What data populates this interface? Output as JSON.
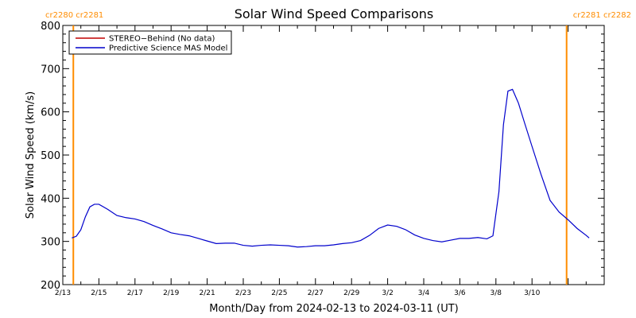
{
  "chart_data": {
    "type": "line",
    "title": "Solar Wind Speed Comparisons",
    "xlabel": "Month/Day from 2024-02-13 to 2024-03-11 (UT)",
    "ylabel": "Solar Wind Speed (km/s)",
    "x_start": "2024-02-13",
    "x_end": "2024-03-11",
    "ylim": [
      200,
      800
    ],
    "yticks": [
      200,
      300,
      400,
      500,
      600,
      700,
      800
    ],
    "xticks": [
      "2/13",
      "2/15",
      "2/17",
      "2/19",
      "2/21",
      "2/23",
      "2/25",
      "2/27",
      "2/29",
      "3/2",
      "3/4",
      "3/6",
      "3/8",
      "3/10"
    ],
    "legend_position": "top-left",
    "carrington_markers": [
      {
        "date": "2024-02-13T14:00",
        "labels": [
          "cr2280",
          "cr2281"
        ],
        "color": "#ff8c00"
      },
      {
        "date": "2024-03-11T22:00",
        "labels": [
          "cr2281",
          "cr2282"
        ],
        "color": "#ff8c00"
      }
    ],
    "series": [
      {
        "name": "STEREO−Behind (No data)",
        "color": "#c00000",
        "points": []
      },
      {
        "name": "Predictive Science MAS Model",
        "color": "#0000cc",
        "points": [
          [
            "2024-02-13T12:00",
            308
          ],
          [
            "2024-02-13T18:00",
            312
          ],
          [
            "2024-02-14T00:00",
            327
          ],
          [
            "2024-02-14T06:00",
            357
          ],
          [
            "2024-02-14T12:00",
            380
          ],
          [
            "2024-02-14T18:00",
            386
          ],
          [
            "2024-02-15T00:00",
            386
          ],
          [
            "2024-02-15T12:00",
            374
          ],
          [
            "2024-02-16T00:00",
            360
          ],
          [
            "2024-02-16T12:00",
            355
          ],
          [
            "2024-02-17T00:00",
            352
          ],
          [
            "2024-02-17T12:00",
            346
          ],
          [
            "2024-02-18T00:00",
            337
          ],
          [
            "2024-02-18T12:00",
            329
          ],
          [
            "2024-02-19T00:00",
            320
          ],
          [
            "2024-02-19T12:00",
            316
          ],
          [
            "2024-02-20T00:00",
            313
          ],
          [
            "2024-02-20T12:00",
            307
          ],
          [
            "2024-02-21T00:00",
            301
          ],
          [
            "2024-02-21T12:00",
            295
          ],
          [
            "2024-02-22T00:00",
            296
          ],
          [
            "2024-02-22T12:00",
            296
          ],
          [
            "2024-02-23T00:00",
            291
          ],
          [
            "2024-02-23T12:00",
            289
          ],
          [
            "2024-02-24T00:00",
            291
          ],
          [
            "2024-02-24T12:00",
            292
          ],
          [
            "2024-02-25T00:00",
            291
          ],
          [
            "2024-02-25T12:00",
            290
          ],
          [
            "2024-02-26T00:00",
            287
          ],
          [
            "2024-02-26T12:00",
            288
          ],
          [
            "2024-02-27T00:00",
            290
          ],
          [
            "2024-02-27T12:00",
            290
          ],
          [
            "2024-02-28T00:00",
            292
          ],
          [
            "2024-02-28T12:00",
            295
          ],
          [
            "2024-02-29T00:00",
            297
          ],
          [
            "2024-02-29T12:00",
            302
          ],
          [
            "2024-03-01T00:00",
            314
          ],
          [
            "2024-03-01T12:00",
            330
          ],
          [
            "2024-03-02T00:00",
            338
          ],
          [
            "2024-03-02T12:00",
            335
          ],
          [
            "2024-03-03T00:00",
            327
          ],
          [
            "2024-03-03T12:00",
            315
          ],
          [
            "2024-03-04T00:00",
            307
          ],
          [
            "2024-03-04T12:00",
            302
          ],
          [
            "2024-03-05T00:00",
            299
          ],
          [
            "2024-03-05T12:00",
            303
          ],
          [
            "2024-03-06T00:00",
            307
          ],
          [
            "2024-03-06T12:00",
            307
          ],
          [
            "2024-03-07T00:00",
            309
          ],
          [
            "2024-03-07T12:00",
            306
          ],
          [
            "2024-03-07T20:00",
            313
          ],
          [
            "2024-03-08T04:00",
            415
          ],
          [
            "2024-03-08T10:00",
            570
          ],
          [
            "2024-03-08T16:00",
            648
          ],
          [
            "2024-03-08T22:00",
            652
          ],
          [
            "2024-03-09T06:00",
            620
          ],
          [
            "2024-03-09T14:00",
            575
          ],
          [
            "2024-03-10T00:00",
            520
          ],
          [
            "2024-03-10T12:00",
            455
          ],
          [
            "2024-03-11T00:00",
            395
          ],
          [
            "2024-03-11T12:00",
            368
          ],
          [
            "2024-03-12T00:00",
            350
          ],
          [
            "2024-03-12T12:00",
            330
          ],
          [
            "2024-03-13T00:00",
            314
          ],
          [
            "2024-03-13T04:00",
            308
          ]
        ]
      }
    ]
  }
}
